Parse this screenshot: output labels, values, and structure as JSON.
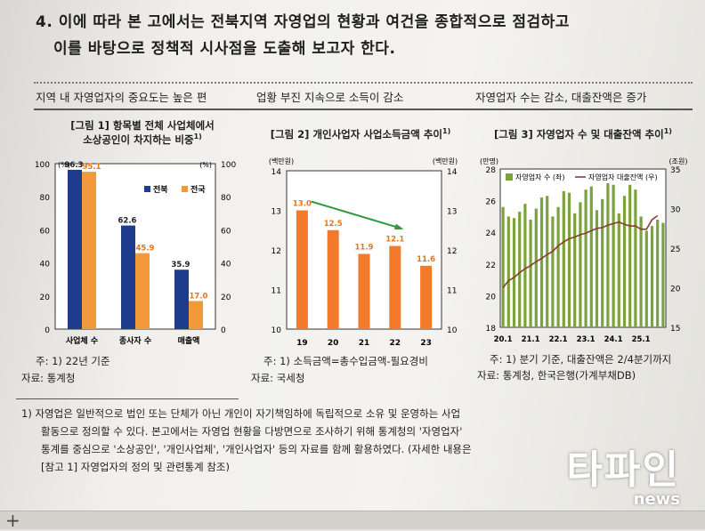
{
  "heading": {
    "line1": "4. 이에 따라 본 고에서는 전북지역 자영업의 현황과 여건을 종합적으로 점검하고",
    "line2": "이를 바탕으로 정책적 시사점을 도출해 보고자 한다."
  },
  "band": {
    "left": "지역 내 자영업자의 중요도는 높은 편",
    "center": "업황 부진 지속으로 소득이 감소",
    "right": "자영업자 수는 감소, 대출잔액은 증가"
  },
  "figures": {
    "fig1": {
      "title1": "[그림 1] 항목별 전체 사업체에서",
      "title2": "소상공인이 차지하는 비중",
      "title_sup": "1)",
      "note": "주: 1) 22년 기준",
      "source": "자료: 통계청"
    },
    "fig2": {
      "title": "[그림 2] 개인사업자 사업소득금액 추이",
      "title_sup": "1)",
      "note": "주: 1) 소득금액=총수입금액-필요경비",
      "source": "자료: 국세청"
    },
    "fig3": {
      "title": "[그림 3] 자영업자 수 및 대출잔액 추이",
      "title_sup": "1)",
      "note": "주: 1) 분기 기준, 대출잔액은 2/4분기까지",
      "source": "자료: 통계청, 한국은행(가계부채DB)"
    }
  },
  "chart_data": [
    {
      "type": "bar",
      "categories": [
        "사업체 수",
        "종사자 수",
        "매출액"
      ],
      "series": [
        {
          "name": "전북",
          "values": [
            96.3,
            62.6,
            35.9
          ],
          "color": "#1f3c8c"
        },
        {
          "name": "전국",
          "values": [
            95.1,
            45.9,
            17.0
          ],
          "color": "#f29a3a"
        }
      ],
      "labels": [
        [
          "96.3",
          "62.6",
          "35.9"
        ],
        [
          "95.1",
          "45.9",
          "17.0"
        ]
      ],
      "ylim": [
        0,
        100
      ],
      "yticks": [
        0,
        20,
        40,
        60,
        80,
        100
      ],
      "yunit_left": "(%)",
      "yunit_right": "(%)",
      "legend": "top-right"
    },
    {
      "type": "bar",
      "categories": [
        "19",
        "20",
        "21",
        "22",
        "23"
      ],
      "values": [
        13.0,
        12.5,
        11.9,
        12.1,
        11.6
      ],
      "labels": [
        "13.0",
        "12.5",
        "11.9",
        "12.1",
        "11.6"
      ],
      "color": "#f47a2a",
      "ylim": [
        10,
        14
      ],
      "yticks": [
        10,
        11,
        12,
        13,
        14
      ],
      "yunit_left": "(백만원)",
      "yunit_right": "(백만원)",
      "trend_arrow_color": "#2e9a3c"
    },
    {
      "type": "bar+line",
      "x_ticks": [
        "20.1",
        "21.1",
        "22.1",
        "23.1",
        "24.1",
        "25.1"
      ],
      "bar_series": {
        "name": "자영업자 수 (좌)",
        "color": "#7aa33c",
        "values": [
          25.6,
          25.0,
          24.9,
          25.3,
          25.8,
          24.8,
          25.5,
          26.2,
          26.3,
          25.0,
          25.6,
          26.6,
          26.5,
          25.2,
          25.9,
          26.7,
          26.9,
          25.4,
          26.1,
          27.1,
          27.0,
          25.2,
          26.3,
          27.0,
          26.7,
          25.0,
          24.1,
          24.4,
          24.8,
          24.6
        ]
      },
      "line_series": {
        "name": "자영업자 대출잔액 (우)",
        "color": "#8b3a3a",
        "values": [
          20.0,
          20.9,
          21.3,
          21.9,
          22.4,
          22.8,
          23.3,
          23.7,
          24.2,
          24.6,
          25.3,
          25.8,
          26.2,
          26.4,
          26.7,
          26.9,
          27.2,
          27.5,
          27.6,
          27.9,
          28.1,
          28.3,
          28.0,
          27.8,
          27.8,
          27.4,
          27.4,
          28.6,
          29.1
        ]
      },
      "ylim_left": [
        18,
        28
      ],
      "yticks_left": [
        18,
        20,
        22,
        24,
        26,
        28
      ],
      "yunit_left": "(만명)",
      "ylim_right": [
        15,
        35
      ],
      "yticks_right": [
        15,
        20,
        25,
        30,
        35
      ],
      "yunit_right": "(조원)",
      "legend": "top"
    }
  ],
  "footnote": {
    "line1": "1) 자영업은 일반적으로 법인 또는 단체가 아닌 개인이 자기책임하에 독립적으로 소유 및 운영하는 사업",
    "line2": "활동으로 정의할 수 있다. 본고에서는 자영업 현황을 다방면으로 조사하기 위해 통계청의 '자영업자'",
    "line3": "통계를 중심으로 '소상공인', '개인사업체', '개인사업자' 등의 자료를 함께 활용하였다. (자세한 내용은",
    "line4": "[참고 1] 자영업자의 정의 및 관련통계 참조)"
  },
  "watermark": {
    "brand": "타파인",
    "sub": "news"
  }
}
